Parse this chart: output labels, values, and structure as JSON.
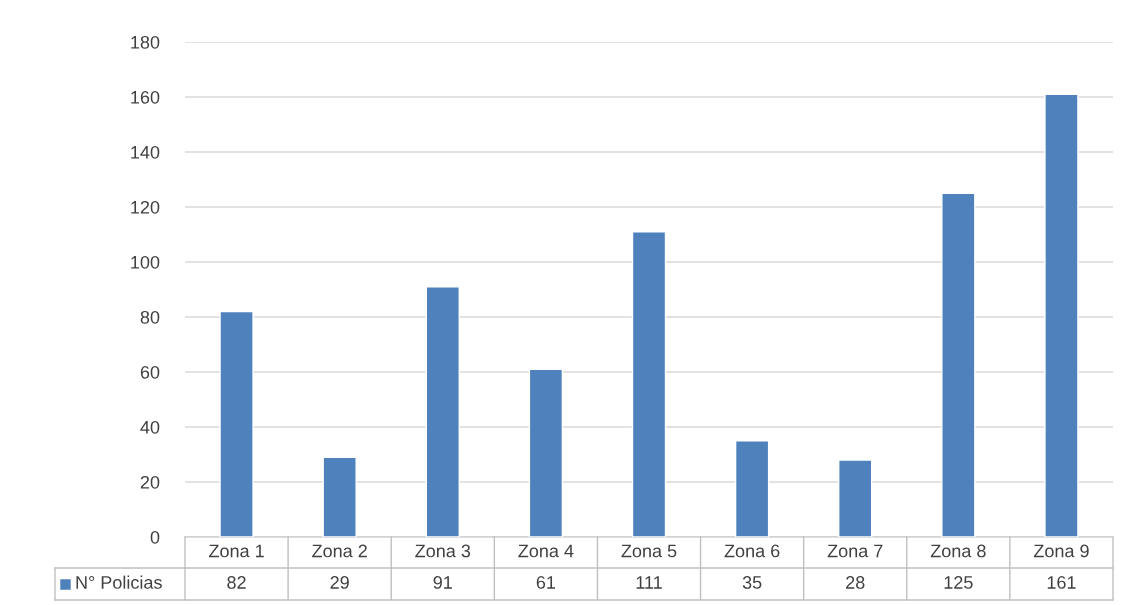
{
  "chart_data": {
    "type": "bar",
    "categories": [
      "Zona 1",
      "Zona 2",
      "Zona 3",
      "Zona 4",
      "Zona 5",
      "Zona 6",
      "Zona 7",
      "Zona 8",
      "Zona 9"
    ],
    "series": [
      {
        "name": "N° Policias",
        "color": "#4f81bd",
        "values": [
          82,
          29,
          91,
          61,
          111,
          35,
          28,
          125,
          161
        ]
      }
    ],
    "ylim": [
      0,
      180
    ],
    "yticks": [
      0,
      20,
      40,
      60,
      80,
      100,
      120,
      140,
      160,
      180
    ],
    "grid": "y",
    "legend": "bottom left",
    "data_labels": true
  }
}
